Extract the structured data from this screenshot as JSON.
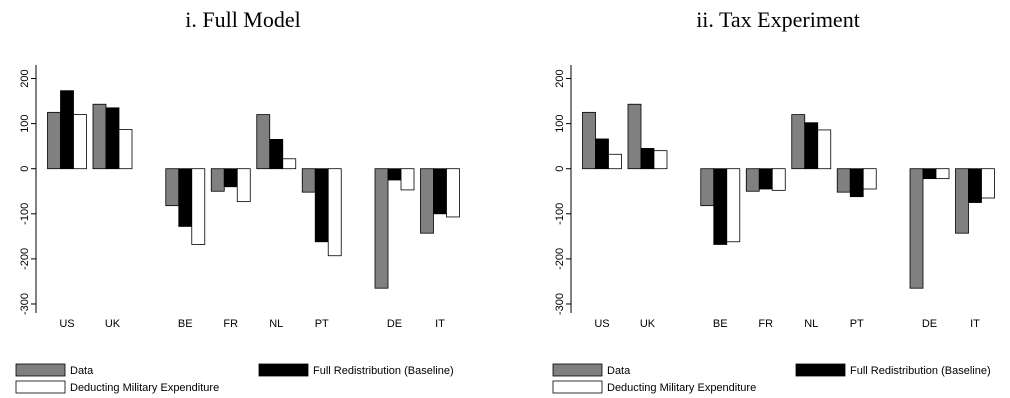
{
  "chart_data": [
    {
      "type": "bar",
      "title": "i. Full Model",
      "categories": [
        "US",
        "UK",
        "BE",
        "FR",
        "NL",
        "PT",
        "DE",
        "IT"
      ],
      "ylim": [
        -320,
        230
      ],
      "yticks": [
        -300,
        -200,
        -100,
        0,
        100,
        200
      ],
      "ytick_labels": [
        "-300",
        "-200",
        "-100",
        "0",
        "100",
        "200"
      ],
      "grid": false,
      "legend_position": "bottom",
      "series": [
        {
          "name": "Data",
          "color": "#808080",
          "values": [
            125,
            143,
            -82,
            -50,
            120,
            -52,
            -265,
            -143
          ]
        },
        {
          "name": "Full Redistribution (Baseline)",
          "color": "#000000",
          "values": [
            173,
            135,
            -128,
            -40,
            65,
            -162,
            -25,
            -100
          ]
        },
        {
          "name": "Deducting Military Expenditure",
          "color": "#ffffff",
          "values": [
            120,
            87,
            -168,
            -73,
            22,
            -193,
            -47,
            -107
          ]
        }
      ]
    },
    {
      "type": "bar",
      "title": "ii. Tax Experiment",
      "categories": [
        "US",
        "UK",
        "BE",
        "FR",
        "NL",
        "PT",
        "DE",
        "IT"
      ],
      "ylim": [
        -320,
        230
      ],
      "yticks": [
        -300,
        -200,
        -100,
        0,
        100,
        200
      ],
      "ytick_labels": [
        "-300",
        "-200",
        "-100",
        "0",
        "100",
        "200"
      ],
      "grid": false,
      "legend_position": "bottom",
      "series": [
        {
          "name": "Data",
          "color": "#808080",
          "values": [
            125,
            143,
            -82,
            -50,
            120,
            -52,
            -265,
            -143
          ]
        },
        {
          "name": "Full Redistribution (Baseline)",
          "color": "#000000",
          "values": [
            66,
            45,
            -168,
            -45,
            102,
            -62,
            -22,
            -75
          ]
        },
        {
          "name": "Deducting Military Expenditure",
          "color": "#ffffff",
          "values": [
            32,
            40,
            -162,
            -48,
            86,
            -45,
            -22,
            -65
          ]
        }
      ]
    }
  ]
}
